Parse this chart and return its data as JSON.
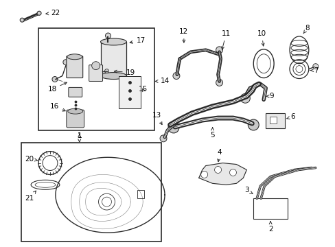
{
  "bg_color": "#ffffff",
  "line_color": "#2a2a2a",
  "fig_width": 4.89,
  "fig_height": 3.6,
  "dpi": 100,
  "label_fontsize": 7.5,
  "label_color": "#000000",
  "arrow_color": "#2a2a2a"
}
